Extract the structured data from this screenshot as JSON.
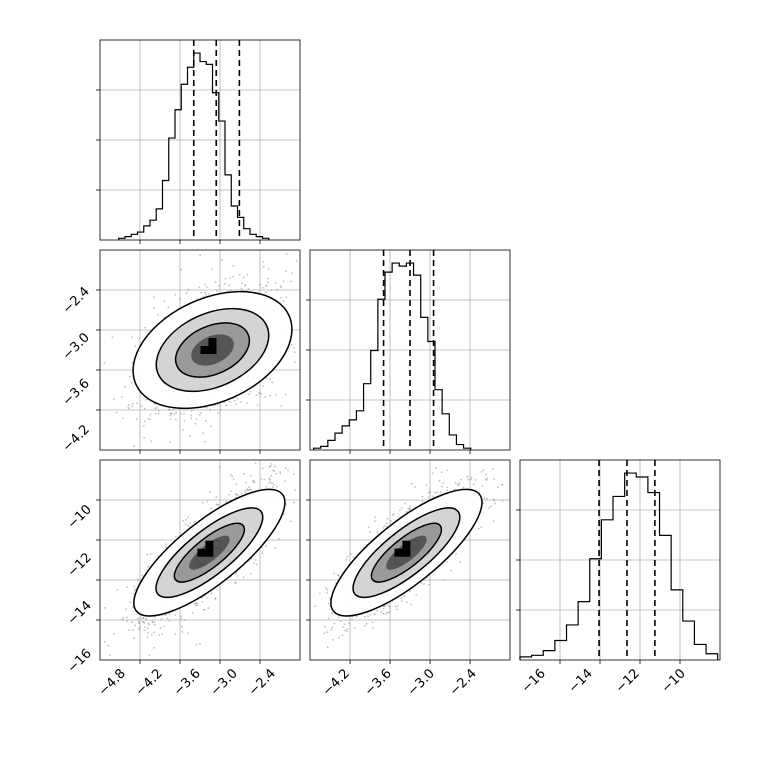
{
  "colors": {
    "hist": "#000000",
    "grid": "#b0b0b0",
    "scatter": "#8c8c8c",
    "density_light": "#d4d4d4",
    "density_mid": "#9a9a9a",
    "density_dark": "#555555",
    "density_peak": "#000000"
  },
  "chart_data": [
    {
      "type": "histogram",
      "panel": "row1-col1",
      "xlim": [
        -5.1,
        -1.9
      ],
      "bins": [
        {
          "x": -4.75,
          "count": 60
        },
        {
          "x": -4.65,
          "count": 120
        },
        {
          "x": -4.55,
          "count": 200
        },
        {
          "x": -4.45,
          "count": 280
        },
        {
          "x": -4.35,
          "count": 500
        },
        {
          "x": -4.25,
          "count": 700
        },
        {
          "x": -4.15,
          "count": 1100
        },
        {
          "x": -4.05,
          "count": 2100
        },
        {
          "x": -3.95,
          "count": 3600
        },
        {
          "x": -3.85,
          "count": 4600
        },
        {
          "x": -3.75,
          "count": 5500
        },
        {
          "x": -3.65,
          "count": 6100
        },
        {
          "x": -3.55,
          "count": 6600
        },
        {
          "x": -3.45,
          "count": 6300
        },
        {
          "x": -3.35,
          "count": 6200
        },
        {
          "x": -3.25,
          "count": 5200
        },
        {
          "x": -3.15,
          "count": 4200
        },
        {
          "x": -3.05,
          "count": 2300
        },
        {
          "x": -2.95,
          "count": 1200
        },
        {
          "x": -2.85,
          "count": 800
        },
        {
          "x": -2.75,
          "count": 400
        },
        {
          "x": -2.65,
          "count": 200
        },
        {
          "x": -2.55,
          "count": 120
        },
        {
          "x": -2.45,
          "count": 60
        }
      ],
      "quantiles": [
        -3.6,
        -3.24,
        -2.87
      ],
      "grid": true
    },
    {
      "type": "scatter-density",
      "panel": "row2-col1",
      "xlim": [
        -5.1,
        -1.9
      ],
      "ylim": [
        -4.7,
        -1.9
      ],
      "center": [
        -3.3,
        -3.3
      ],
      "correlation": 0.45,
      "grid": true
    },
    {
      "type": "histogram",
      "panel": "row2-col2",
      "xlim": [
        -4.7,
        -1.9
      ],
      "bins": [
        {
          "x": -4.6,
          "count": 30
        },
        {
          "x": -4.5,
          "count": 60
        },
        {
          "x": -4.4,
          "count": 160
        },
        {
          "x": -4.3,
          "count": 280
        },
        {
          "x": -4.2,
          "count": 400
        },
        {
          "x": -4.1,
          "count": 500
        },
        {
          "x": -4.0,
          "count": 650
        },
        {
          "x": -3.9,
          "count": 1100
        },
        {
          "x": -3.8,
          "count": 1650
        },
        {
          "x": -3.7,
          "count": 2500
        },
        {
          "x": -3.6,
          "count": 2950
        },
        {
          "x": -3.5,
          "count": 3100
        },
        {
          "x": -3.4,
          "count": 3050
        },
        {
          "x": -3.3,
          "count": 3100
        },
        {
          "x": -3.2,
          "count": 2900
        },
        {
          "x": -3.1,
          "count": 2200
        },
        {
          "x": -3.0,
          "count": 1800
        },
        {
          "x": -2.9,
          "count": 1000
        },
        {
          "x": -2.8,
          "count": 600
        },
        {
          "x": -2.7,
          "count": 250
        },
        {
          "x": -2.6,
          "count": 90
        },
        {
          "x": -2.5,
          "count": 30
        }
      ],
      "quantiles": [
        -3.67,
        -3.3,
        -2.97
      ],
      "grid": true
    },
    {
      "type": "scatter-density",
      "panel": "row3-col1",
      "xlim": [
        -5.1,
        -1.9
      ],
      "ylim": [
        -16.8,
        -8.6
      ],
      "center": [
        -3.35,
        -12.4
      ],
      "correlation": 0.8,
      "grid": true
    },
    {
      "type": "scatter-density",
      "panel": "row3-col2",
      "xlim": [
        -4.7,
        -1.9
      ],
      "ylim": [
        -16.8,
        -8.6
      ],
      "center": [
        -3.35,
        -12.4
      ],
      "correlation": 0.8,
      "grid": true
    },
    {
      "type": "histogram",
      "panel": "row3-col3",
      "xlim": [
        -17.0,
        -8.4
      ],
      "bins": [
        {
          "x": -16.75,
          "count": 40
        },
        {
          "x": -16.25,
          "count": 60
        },
        {
          "x": -15.75,
          "count": 120
        },
        {
          "x": -15.25,
          "count": 250
        },
        {
          "x": -14.75,
          "count": 450
        },
        {
          "x": -14.25,
          "count": 750
        },
        {
          "x": -13.75,
          "count": 1300
        },
        {
          "x": -13.25,
          "count": 1800
        },
        {
          "x": -12.75,
          "count": 2100
        },
        {
          "x": -12.25,
          "count": 2400
        },
        {
          "x": -11.75,
          "count": 2350
        },
        {
          "x": -11.25,
          "count": 2150
        },
        {
          "x": -10.75,
          "count": 1600
        },
        {
          "x": -10.25,
          "count": 900
        },
        {
          "x": -9.75,
          "count": 500
        },
        {
          "x": -9.25,
          "count": 200
        },
        {
          "x": -8.75,
          "count": 80
        }
      ],
      "quantiles": [
        -13.6,
        -12.4,
        -11.2
      ],
      "grid": true
    }
  ],
  "tick_labels": {
    "row2_y": [
      "−2.4",
      "−3.0",
      "−3.6",
      "−4.2"
    ],
    "row3_y": [
      "−10",
      "−12",
      "−14",
      "−16"
    ],
    "col1_x": [
      "−4.8",
      "−4.2",
      "−3.6",
      "−3.0",
      "−2.4"
    ],
    "col2_x": [
      "−4.2",
      "−3.6",
      "−3.0",
      "−2.4"
    ],
    "col3_x": [
      "−16",
      "−14",
      "−12",
      "−10"
    ]
  }
}
